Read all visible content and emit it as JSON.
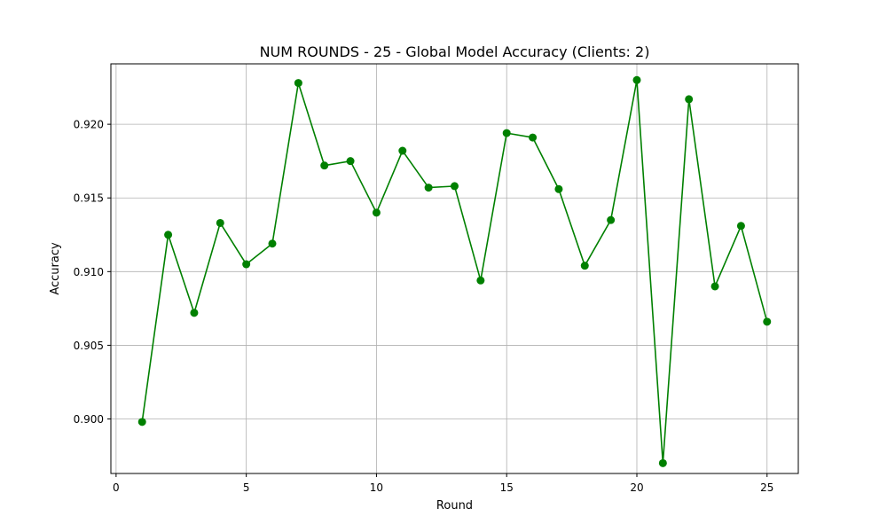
{
  "chart_data": {
    "type": "line",
    "title": "NUM ROUNDS - 25 - Global Model Accuracy (Clients: 2)",
    "xlabel": "Round",
    "ylabel": "Accuracy",
    "xlim": [
      -0.2,
      26.2
    ],
    "ylim": [
      0.8963,
      0.9241
    ],
    "xticks": [
      0,
      5,
      10,
      15,
      20,
      25
    ],
    "xtick_labels": [
      "0",
      "5",
      "10",
      "15",
      "20",
      "25"
    ],
    "yticks": [
      0.9,
      0.905,
      0.91,
      0.915,
      0.92
    ],
    "ytick_labels": [
      "0.900",
      "0.905",
      "0.910",
      "0.915",
      "0.920"
    ],
    "grid": true,
    "series": [
      {
        "color": "#008000",
        "marker": "circle",
        "x": [
          1,
          2,
          3,
          4,
          5,
          6,
          7,
          8,
          9,
          10,
          11,
          12,
          13,
          14,
          15,
          16,
          17,
          18,
          19,
          20,
          21,
          22,
          23,
          24,
          25
        ],
        "y": [
          0.8998,
          0.9125,
          0.9072,
          0.9133,
          0.9105,
          0.9119,
          0.9228,
          0.9172,
          0.9175,
          0.914,
          0.9182,
          0.9157,
          0.9158,
          0.9094,
          0.9194,
          0.9191,
          0.9156,
          0.9104,
          0.9135,
          0.923,
          0.897,
          0.9217,
          0.909,
          0.9131,
          0.9066
        ]
      }
    ]
  }
}
